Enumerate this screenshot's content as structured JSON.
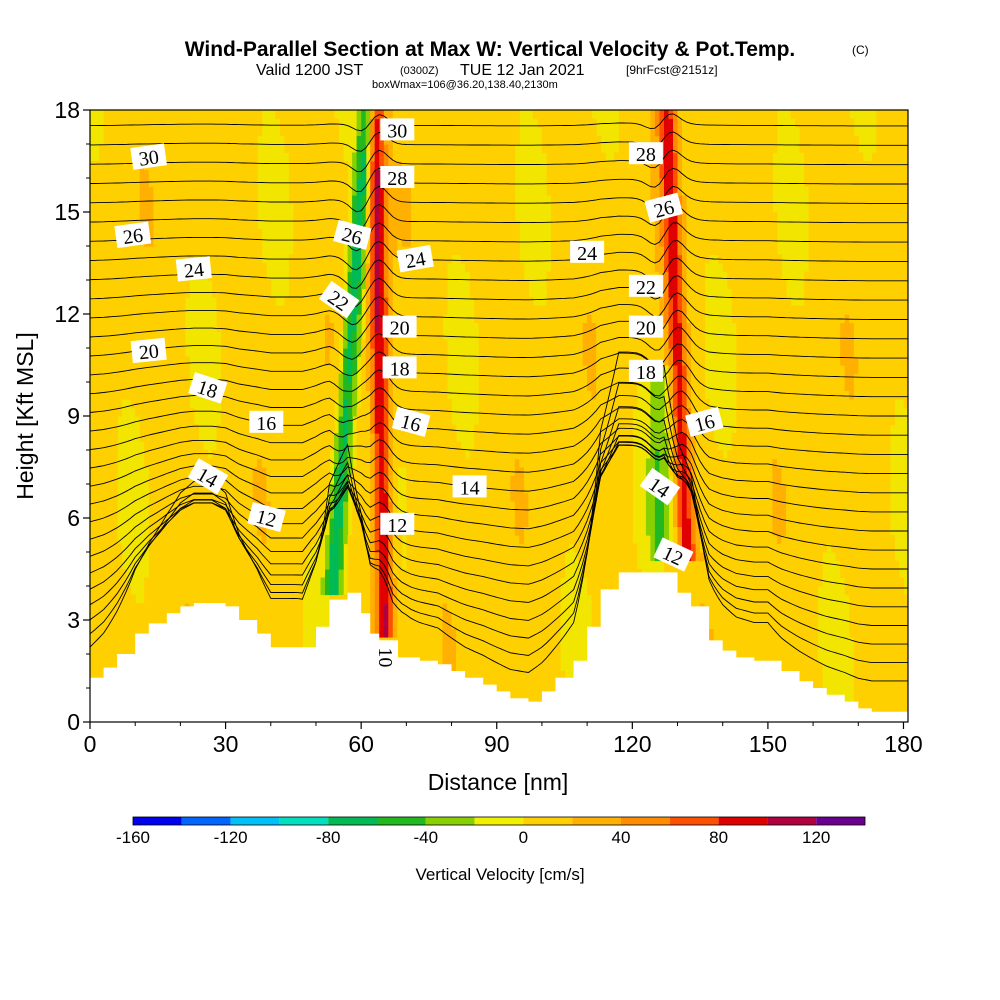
{
  "chart_data": {
    "type": "contour-section",
    "title": {
      "main": "Wind-Parallel Section at Max W: Vertical Velocity & Pot.Temp.",
      "copyright": "(C)",
      "sub_valid": "Valid 1200 JST",
      "sub_utc": "(0300Z)",
      "sub_date": "TUE 12 Jan 2021",
      "sub_fcst": "[9hrFcst@2151z]",
      "sub_box": "boxWmax=106@36.20,138.40,2130m"
    },
    "xlabel": "Distance [nm]",
    "ylabel": "Height [Kft MSL]",
    "xlim": [
      0,
      181
    ],
    "ylim": [
      0,
      18
    ],
    "x_ticks": [
      0,
      30,
      60,
      90,
      120,
      150,
      180
    ],
    "x_tick_labels": [
      "0",
      "30",
      "60",
      "90",
      "120",
      "150",
      "180"
    ],
    "y_ticks": [
      0,
      3,
      6,
      9,
      12,
      15,
      18
    ],
    "y_tick_labels": [
      "0",
      "3",
      "6",
      "9",
      "12",
      "15",
      "18"
    ],
    "colorbar": {
      "title": "Vertical Velocity [cm/s]",
      "bounds": [
        -160,
        140
      ],
      "step": 20,
      "tick_values": [
        -160,
        -120,
        -80,
        -40,
        0,
        40,
        80,
        120
      ],
      "tick_labels": [
        "-160",
        "-120",
        "-80",
        "-40",
        "0",
        "40",
        "80",
        "120"
      ],
      "colors": [
        "#0000ee",
        "#0066ff",
        "#00c0f8",
        "#00e0c0",
        "#00bb55",
        "#22b820",
        "#88d000",
        "#f0f000",
        "#ffd000",
        "#ffb000",
        "#ff8c00",
        "#ff5000",
        "#e00000",
        "#b00040",
        "#6a0090"
      ]
    },
    "vertical_velocity_features": [
      {
        "center_nm": 56,
        "bottom_kft": 4.0,
        "top_kft": 18,
        "peak_cm_s": -80,
        "tilt_nm_per_kft": 0.55
      },
      {
        "center_nm": 64.5,
        "bottom_kft": 2.6,
        "top_kft": 18,
        "peak_cm_s": 100,
        "tilt_nm_per_kft": -0.15
      },
      {
        "center_nm": 126,
        "bottom_kft": 5.0,
        "top_kft": 10,
        "peak_cm_s": -40,
        "tilt_nm_per_kft": 0.0
      },
      {
        "center_nm": 131,
        "bottom_kft": 5.0,
        "top_kft": 18,
        "peak_cm_s": 80,
        "tilt_nm_per_kft": -0.35
      }
    ],
    "terrain": {
      "x_nm": [
        0,
        3,
        6,
        10,
        13,
        17,
        20,
        23,
        27,
        30,
        33,
        37,
        40,
        43,
        47,
        50,
        53,
        57,
        60,
        62,
        64,
        67,
        70,
        73,
        77,
        80,
        83,
        87,
        90,
        93,
        97,
        100,
        103,
        107,
        110,
        113,
        117,
        120,
        123,
        127,
        130,
        133,
        137,
        140,
        143,
        147,
        150,
        153,
        157,
        160,
        163,
        167,
        170,
        173,
        177,
        181
      ],
      "height_kft": [
        1.3,
        1.6,
        2.0,
        2.6,
        2.9,
        3.2,
        3.4,
        3.5,
        3.5,
        3.4,
        3.0,
        2.6,
        2.2,
        2.2,
        2.2,
        2.8,
        3.6,
        3.8,
        3.2,
        2.6,
        2.4,
        1.9,
        1.9,
        1.8,
        1.7,
        1.5,
        1.3,
        1.1,
        0.9,
        0.7,
        0.6,
        0.9,
        1.3,
        1.8,
        2.8,
        3.9,
        4.4,
        4.4,
        4.4,
        4.4,
        3.8,
        3.4,
        2.4,
        2.1,
        1.9,
        1.8,
        1.8,
        1.5,
        1.2,
        1.0,
        0.8,
        0.6,
        0.4,
        0.3,
        0.3,
        0.3
      ]
    },
    "potential_temperature_labels": [
      {
        "text": "30",
        "x": 13,
        "y": 16.6,
        "angle": -8
      },
      {
        "text": "26",
        "x": 9.5,
        "y": 14.3,
        "angle": -8
      },
      {
        "text": "24",
        "x": 23,
        "y": 13.3,
        "angle": -6
      },
      {
        "text": "20",
        "x": 13,
        "y": 10.9,
        "angle": -6
      },
      {
        "text": "18",
        "x": 26,
        "y": 9.8,
        "angle": 18
      },
      {
        "text": "16",
        "x": 39,
        "y": 8.8,
        "angle": 0
      },
      {
        "text": "14",
        "x": 26,
        "y": 7.2,
        "angle": 30
      },
      {
        "text": "12",
        "x": 39,
        "y": 6.0,
        "angle": 15
      },
      {
        "text": "22",
        "x": 55,
        "y": 12.4,
        "angle": 35
      },
      {
        "text": "26",
        "x": 58,
        "y": 14.3,
        "angle": 15
      },
      {
        "text": "30",
        "x": 68,
        "y": 17.4,
        "angle": 0
      },
      {
        "text": "28",
        "x": 68,
        "y": 16.0,
        "angle": 0
      },
      {
        "text": "24",
        "x": 72,
        "y": 13.6,
        "angle": -10
      },
      {
        "text": "20",
        "x": 68.5,
        "y": 11.6,
        "angle": 0
      },
      {
        "text": "18",
        "x": 68.5,
        "y": 10.4,
        "angle": 0
      },
      {
        "text": "16",
        "x": 71,
        "y": 8.8,
        "angle": 15
      },
      {
        "text": "12",
        "x": 68,
        "y": 5.8,
        "angle": 0
      },
      {
        "text": "10",
        "x": 65.5,
        "y": 1.9,
        "angle": 90
      },
      {
        "text": "14",
        "x": 84,
        "y": 6.9,
        "angle": 0
      },
      {
        "text": "24",
        "x": 110,
        "y": 13.8,
        "angle": 0
      },
      {
        "text": "28",
        "x": 123,
        "y": 16.7,
        "angle": 0
      },
      {
        "text": "26",
        "x": 127,
        "y": 15.1,
        "angle": -15
      },
      {
        "text": "22",
        "x": 123,
        "y": 12.8,
        "angle": 0
      },
      {
        "text": "20",
        "x": 123,
        "y": 11.6,
        "angle": 0
      },
      {
        "text": "18",
        "x": 123,
        "y": 10.3,
        "angle": 0
      },
      {
        "text": "16",
        "x": 136,
        "y": 8.8,
        "angle": -15
      },
      {
        "text": "14",
        "x": 126,
        "y": 6.9,
        "angle": 35
      },
      {
        "text": "12",
        "x": 129,
        "y": 4.9,
        "angle": 25
      }
    ],
    "grid": false,
    "legend": "colorbar-bottom"
  }
}
